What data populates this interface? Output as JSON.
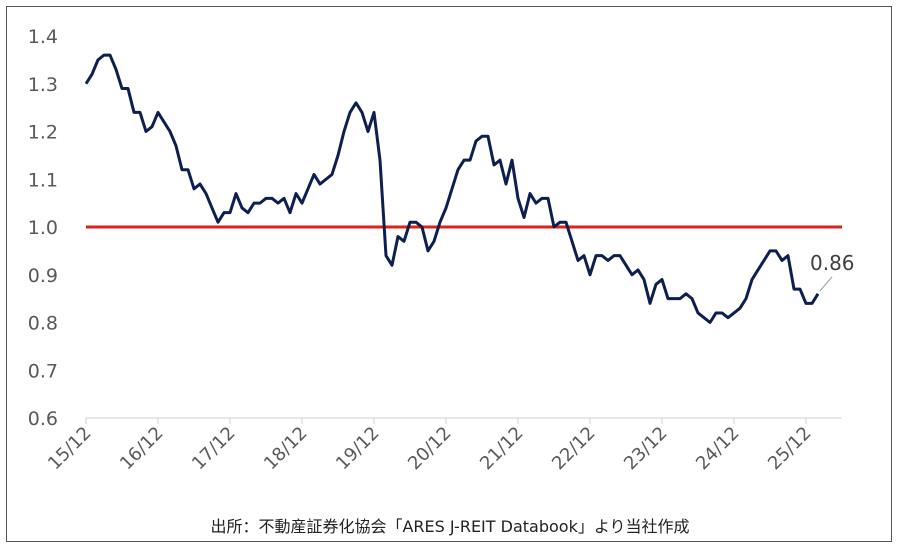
{
  "source_note": "出所：不動産証券化協会「ARES J-REIT Databook」より当社作成",
  "chart_data": {
    "type": "line",
    "title": "",
    "xlabel": "",
    "ylabel": "",
    "ylim": [
      0.6,
      1.4
    ],
    "yticks": [
      "0.6",
      "0.7",
      "0.8",
      "0.9",
      "1.0",
      "1.1",
      "1.2",
      "1.3",
      "1.4"
    ],
    "xticks": [
      "15/12",
      "16/12",
      "17/12",
      "18/12",
      "19/12",
      "20/12",
      "21/12",
      "22/12",
      "23/12",
      "24/12",
      "25/12"
    ],
    "x_range_months": [
      0,
      126
    ],
    "grid": false,
    "series_color": "#0d1f4f",
    "reference_line": {
      "value": 1.0,
      "color": "#e0201b"
    },
    "end_label": "0.86",
    "series": [
      {
        "values": [
          1.3,
          1.32,
          1.35,
          1.36,
          1.36,
          1.33,
          1.29,
          1.29,
          1.24,
          1.24,
          1.2,
          1.21,
          1.24,
          1.22,
          1.2,
          1.17,
          1.12,
          1.12,
          1.08,
          1.09,
          1.07,
          1.04,
          1.01,
          1.03,
          1.03,
          1.07,
          1.04,
          1.03,
          1.05,
          1.05,
          1.06,
          1.06,
          1.05,
          1.06,
          1.03,
          1.07,
          1.05,
          1.08,
          1.11,
          1.09,
          1.1,
          1.11,
          1.15,
          1.2,
          1.24,
          1.26,
          1.24,
          1.2,
          1.24,
          1.14,
          0.94,
          0.92,
          0.98,
          0.97,
          1.01,
          1.01,
          1.0,
          0.95,
          0.97,
          1.01,
          1.04,
          1.08,
          1.12,
          1.14,
          1.14,
          1.18,
          1.19,
          1.19,
          1.13,
          1.14,
          1.09,
          1.14,
          1.06,
          1.02,
          1.07,
          1.05,
          1.06,
          1.06,
          1.0,
          1.01,
          1.01,
          0.97,
          0.93,
          0.94,
          0.9,
          0.94,
          0.94,
          0.93,
          0.94,
          0.94,
          0.92,
          0.9,
          0.91,
          0.89,
          0.84,
          0.88,
          0.89,
          0.85,
          0.85,
          0.85,
          0.86,
          0.85,
          0.82,
          0.81,
          0.8,
          0.82,
          0.82,
          0.81,
          0.82,
          0.83,
          0.85,
          0.89,
          0.91,
          0.93,
          0.95,
          0.95,
          0.93,
          0.94,
          0.87,
          0.87,
          0.84,
          0.84,
          0.86
        ]
      }
    ]
  }
}
